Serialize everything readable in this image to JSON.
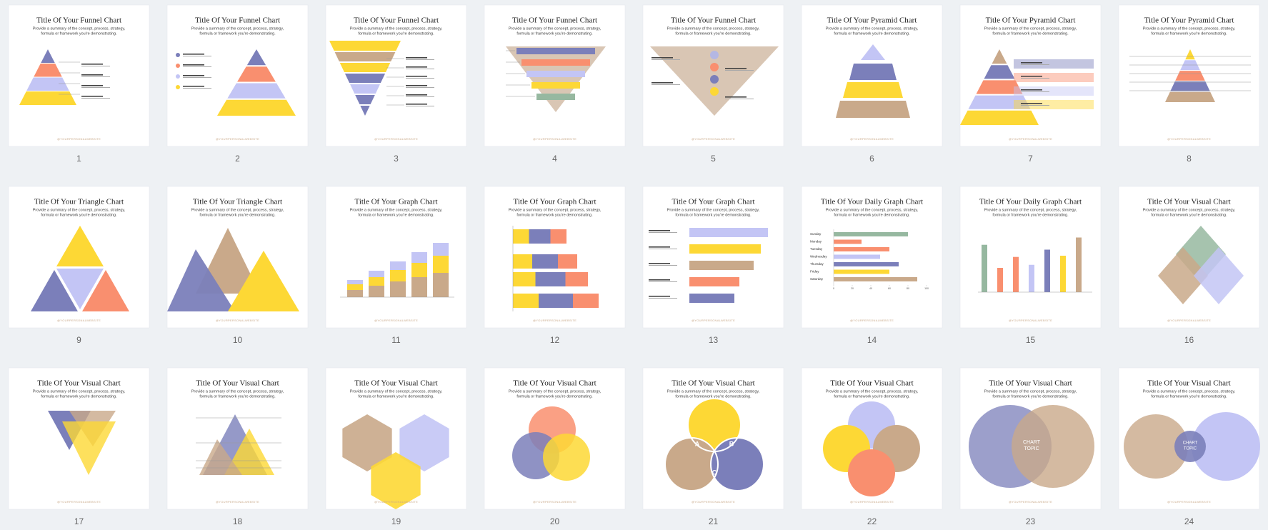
{
  "summary": [
    "Provide a summary of the concept, process, strategy,",
    "formula or framework you're demonstrating."
  ],
  "footer": "@YOURPERSONALWEBSITE",
  "slides": [
    {
      "number": 1,
      "title": "Title Of Your Funnel Chart"
    },
    {
      "number": 2,
      "title": "Title Of Your Funnel Chart"
    },
    {
      "number": 3,
      "title": "Title Of Your Funnel Chart"
    },
    {
      "number": 4,
      "title": "Title Of Your Funnel Chart"
    },
    {
      "number": 5,
      "title": "Title Of Your Funnel Chart"
    },
    {
      "number": 6,
      "title": "Title Of Your Pyramid Chart"
    },
    {
      "number": 7,
      "title": "Title Of Your Pyramid Chart"
    },
    {
      "number": 8,
      "title": "Title Of Your Pyramid Chart"
    },
    {
      "number": 9,
      "title": "Title Of Your Triangle Chart"
    },
    {
      "number": 10,
      "title": "Title Of Your Triangle Chart"
    },
    {
      "number": 11,
      "title": "Title Of Your Graph Chart"
    },
    {
      "number": 12,
      "title": "Title Of Your Graph Chart"
    },
    {
      "number": 13,
      "title": "Title Of Your Graph Chart"
    },
    {
      "number": 14,
      "title": "Title Of Your Daily Graph Chart"
    },
    {
      "number": 15,
      "title": "Title Of Your Daily Graph Chart"
    },
    {
      "number": 16,
      "title": "Title Of Your Visual Chart"
    },
    {
      "number": 17,
      "title": "Title Of Your Visual Chart"
    },
    {
      "number": 18,
      "title": "Title Of Your Visual Chart"
    },
    {
      "number": 19,
      "title": "Title Of Your Visual Chart"
    },
    {
      "number": 20,
      "title": "Title Of Your Visual Chart"
    },
    {
      "number": 21,
      "title": "Title Of Your Visual Chart"
    },
    {
      "number": 22,
      "title": "Title Of Your Visual Chart"
    },
    {
      "number": 23,
      "title": "Title Of Your Visual Chart"
    },
    {
      "number": 24,
      "title": "Title Of Your Visual Chart"
    }
  ],
  "chart_data": {
    "type": "bar",
    "categories": [
      "Sunday",
      "Monday",
      "Tuesday",
      "Wednesday",
      "Thursday",
      "Friday",
      "Saturday"
    ],
    "values": [
      80,
      30,
      60,
      50,
      70,
      60,
      90
    ],
    "colors": [
      "#96b8a0",
      "#f98f6f",
      "#f98f6f",
      "#c3c5f5",
      "#7b7fba",
      "#fdd835",
      "#c9a98a"
    ],
    "xlim": [
      0,
      100
    ],
    "xticks": [
      0,
      20,
      40,
      60,
      80,
      100
    ]
  },
  "venn_labels": [
    "A",
    "B",
    "C"
  ],
  "center_label": [
    "CHART",
    "TOPIC"
  ]
}
